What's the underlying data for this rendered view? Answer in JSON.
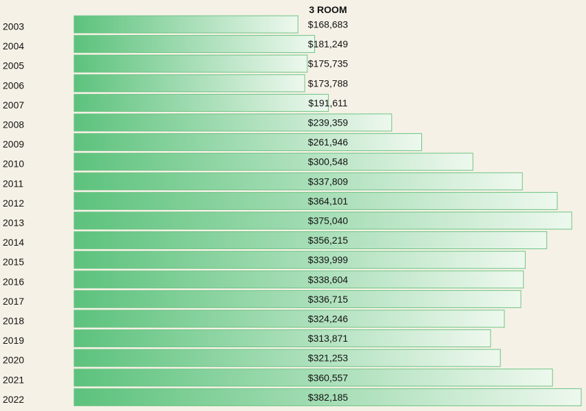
{
  "chart_data": {
    "type": "bar",
    "orientation": "horizontal",
    "title": "3 ROOM",
    "categories": [
      "2003",
      "2004",
      "2005",
      "2006",
      "2007",
      "2008",
      "2009",
      "2010",
      "2011",
      "2012",
      "2013",
      "2014",
      "2015",
      "2016",
      "2017",
      "2018",
      "2019",
      "2020",
      "2021",
      "2022"
    ],
    "values": [
      168683,
      181249,
      175735,
      173788,
      191611,
      239359,
      261946,
      300548,
      337809,
      364101,
      375040,
      356215,
      339999,
      338604,
      336715,
      324246,
      313871,
      321253,
      360557,
      382185
    ],
    "value_labels": [
      "$168,683",
      "$181,249",
      "$175,735",
      "$173,788",
      "$191,611",
      "$239,359",
      "$261,946",
      "$300,548",
      "$337,809",
      "$364,101",
      "$375,040",
      "$356,215",
      "$339,999",
      "$338,604",
      "$336,715",
      "$324,246",
      "$313,871",
      "$321,253",
      "$360,557",
      "$382,185"
    ],
    "xlabel": "",
    "ylabel": "",
    "grid": false,
    "colors": {
      "background": "#f5f1e6",
      "bar_start": "#5cc27c",
      "bar_end": "#eef8ee",
      "bar_border": "#6cc483",
      "text": "#111111"
    }
  }
}
